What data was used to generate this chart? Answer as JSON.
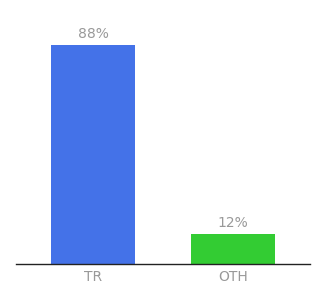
{
  "categories": [
    "TR",
    "OTH"
  ],
  "values": [
    88,
    12
  ],
  "bar_colors": [
    "#4472e8",
    "#33cc33"
  ],
  "label_texts": [
    "88%",
    "12%"
  ],
  "background_color": "#ffffff",
  "ylim": [
    0,
    100
  ],
  "bar_width": 0.6,
  "label_fontsize": 10,
  "tick_fontsize": 10,
  "label_color": "#999999",
  "x_positions": [
    0,
    1
  ],
  "figsize": [
    3.2,
    3.0
  ],
  "dpi": 100
}
